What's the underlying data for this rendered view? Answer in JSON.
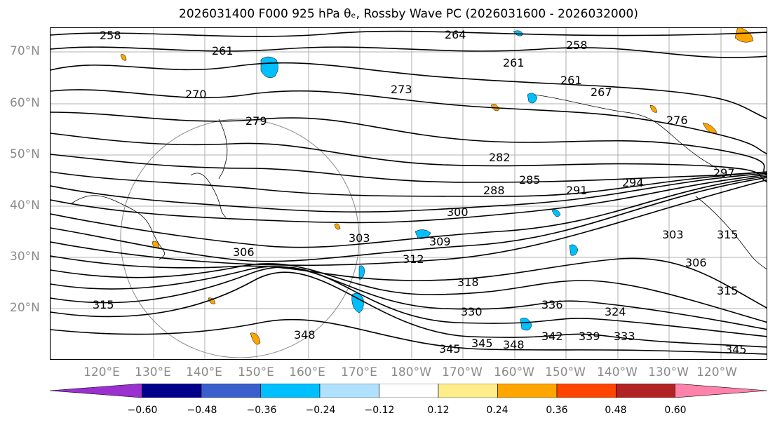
{
  "title": "2026031400 F000 925 hPa θₑ, Rossby Wave PC (2026031600 - 2026032000)",
  "lat_labels": [
    "70°N",
    "60°N",
    "50°N",
    "40°N",
    "30°N",
    "20°N"
  ],
  "lon_labels": [
    "120°E",
    "130°E",
    "140°E",
    "150°E",
    "160°E",
    "170°E",
    "180°W",
    "170°W",
    "160°W",
    "150°W",
    "140°W",
    "130°W",
    "120°W"
  ],
  "contour_labels": [
    "258",
    "261",
    "264",
    "258",
    "261",
    "261",
    "267",
    "270",
    "273",
    "276",
    "279",
    "282",
    "285",
    "288",
    "291",
    "294",
    "297",
    "300",
    "303",
    "303",
    "306",
    "306",
    "309",
    "312",
    "315",
    "318",
    "324",
    "330",
    "333",
    "336",
    "339",
    "342",
    "345",
    "345",
    "345",
    "348",
    "348",
    "315",
    "315"
  ],
  "colorbar": {
    "colors": [
      "#9b30d0",
      "#00008b",
      "#3a5fcd",
      "#00bfff",
      "#b0e2ff",
      "#ffffff",
      "#ffec8b",
      "#ffa500",
      "#ff4500",
      "#b22222",
      "#ff82ab"
    ],
    "tick_labels": [
      "−0.60",
      "−0.48",
      "−0.36",
      "−0.24",
      "−0.12",
      "0.12",
      "0.24",
      "0.36",
      "0.48",
      "0.60"
    ]
  }
}
